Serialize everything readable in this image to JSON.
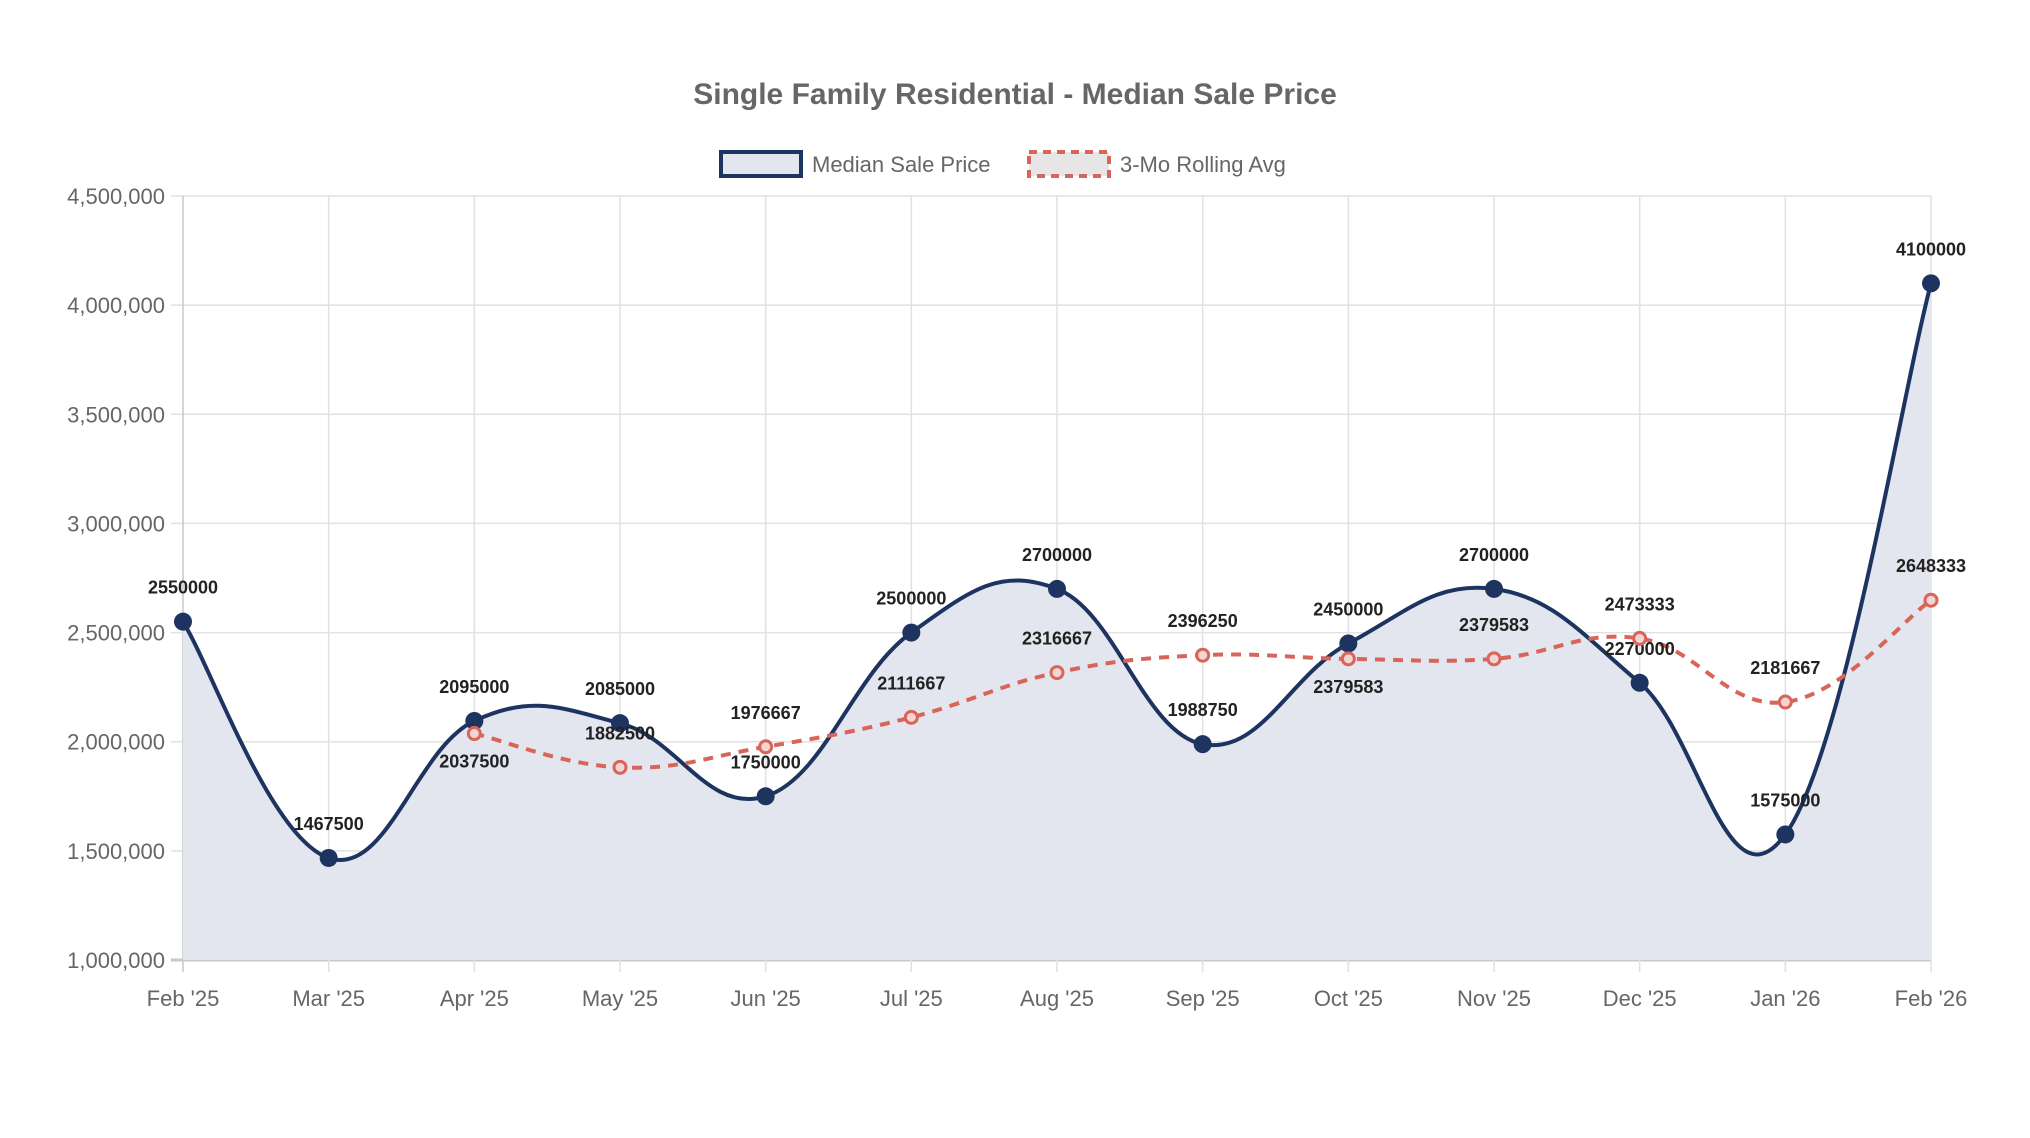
{
  "chart_data": {
    "type": "line",
    "title": "Single Family Residential - Median Sale Price",
    "categories": [
      "Feb '25",
      "Mar '25",
      "Apr '25",
      "May '25",
      "Jun '25",
      "Jul '25",
      "Aug '25",
      "Sep '25",
      "Oct '25",
      "Nov '25",
      "Dec '25",
      "Jan '26",
      "Feb '26"
    ],
    "ylim": [
      1000000,
      4500000
    ],
    "yticks": [
      "1,000,000",
      "1,500,000",
      "2,000,000",
      "2,500,000",
      "3,000,000",
      "3,500,000",
      "4,000,000",
      "4,500,000"
    ],
    "ytick_values": [
      1000000,
      1500000,
      2000000,
      2500000,
      3000000,
      3500000,
      4000000,
      4500000
    ],
    "grid": true,
    "legend_position": "top",
    "series": [
      {
        "name": "Median Sale Price",
        "color": "#1d3461",
        "fill": "#e3e6ee",
        "style": "solid",
        "values": [
          2550000,
          1467500,
          2095000,
          2085000,
          1750000,
          2500000,
          2700000,
          1988750,
          2450000,
          2700000,
          2270000,
          1575000,
          4100000
        ]
      },
      {
        "name": "3-Mo Rolling Avg",
        "color": "#d9655a",
        "fill": "#e6e6e6",
        "style": "dashed",
        "values": [
          null,
          null,
          2037500,
          1882500,
          1976667,
          2111667,
          2316667,
          2396250,
          2379583,
          2379583,
          2473333,
          2181667,
          2648333
        ]
      }
    ]
  }
}
